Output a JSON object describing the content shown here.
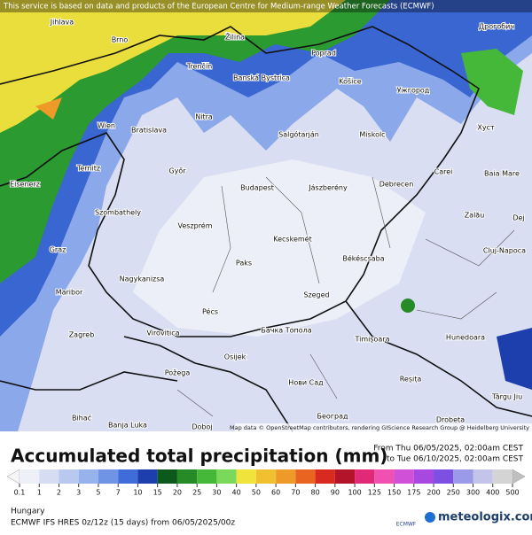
{
  "header": {
    "notice": "This service is based on data and products of the European Centre for Medium-range Weather Forecasts (ECMWF)",
    "attribution": "Map data © OpenStreetMap contributors, rendering GIScience Research Group @ Heidelberg University"
  },
  "cities": [
    "Jihlava",
    "Brno",
    "Žilina",
    "Poprad",
    "Trenčín",
    "Banská Bystrica",
    "Košice",
    "Ужгород",
    "Дрогобич",
    "Wien",
    "Bratislava",
    "Nitra",
    "Salgótarján",
    "Miskolc",
    "Хуст",
    "Ternitz",
    "Győr",
    "Budapest",
    "Jászberény",
    "Debrecen",
    "Carei",
    "Baia Mare",
    "Eisenerz",
    "Szombathely",
    "Veszprém",
    "Zalău",
    "Graz",
    "Kecskemét",
    "Dej",
    "Cluj-Napoca",
    "Békéscsaba",
    "Maribor",
    "Nagykanizsa",
    "Paks",
    "Szeged",
    "Pécs",
    "Zagreb",
    "Virovitica",
    "Бачка Топола",
    "Timișoara",
    "Hunedoara",
    "Osijek",
    "Нови Сад",
    "Reșița",
    "Târgu Jiu",
    "Požega",
    "Bihać",
    "Banja Luka",
    "Doboj",
    "Београд",
    "Drobeta"
  ],
  "title": "Accumulated total precipitation (mm)",
  "period": {
    "from": "From Thu 06/05/2025, 02:00am CEST",
    "to": "to Tue 06/10/2025, 02:00am CEST"
  },
  "legend": {
    "ticks": [
      0.1,
      1,
      2,
      3,
      5,
      7,
      10,
      15,
      20,
      25,
      30,
      40,
      50,
      60,
      70,
      80,
      90,
      100,
      125,
      150,
      175,
      200,
      250,
      300,
      400,
      500
    ],
    "colors": [
      "#eef0f8",
      "#d6dcf2",
      "#b9c8ee",
      "#98b2ec",
      "#6f94e6",
      "#3f6cd8",
      "#1d3fae",
      "#0b5a1c",
      "#268a26",
      "#45b83a",
      "#7ad95a",
      "#f0e43c",
      "#f0c030",
      "#ee9a28",
      "#e86420",
      "#d82a1e",
      "#b4142a",
      "#e02a78",
      "#f050b0",
      "#d050d8",
      "#a848e0",
      "#7c50e0",
      "#9a9ae8",
      "#c4c4ea",
      "#d4d4d4"
    ]
  },
  "footer": {
    "region": "Hungary",
    "model": "ECMWF IFS HRES 0z/12z (15 days) from 06/05/2025/00z",
    "logo": "ECMWF",
    "brand": "meteologix.com"
  }
}
